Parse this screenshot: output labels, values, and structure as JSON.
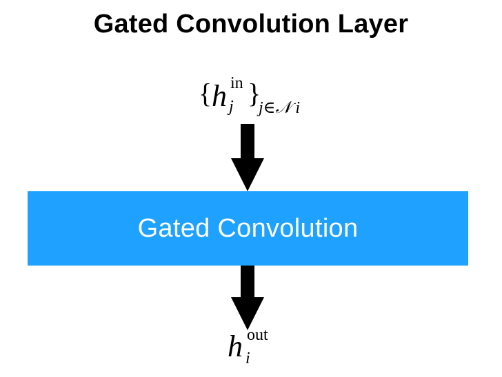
{
  "diagram": {
    "title": "Gated Convolution Layer",
    "input": {
      "symbol": "h",
      "superscript": "in",
      "subscript": "j",
      "set_subscript": "j∈𝒩 i",
      "brace_open": "{",
      "brace_close": "}"
    },
    "block": {
      "label": "Gated Convolution",
      "color": "#1ea1ff",
      "text_color": "#ffffff"
    },
    "output": {
      "symbol": "h",
      "superscript": "out",
      "subscript": "i"
    },
    "arrow_color": "#000000"
  }
}
